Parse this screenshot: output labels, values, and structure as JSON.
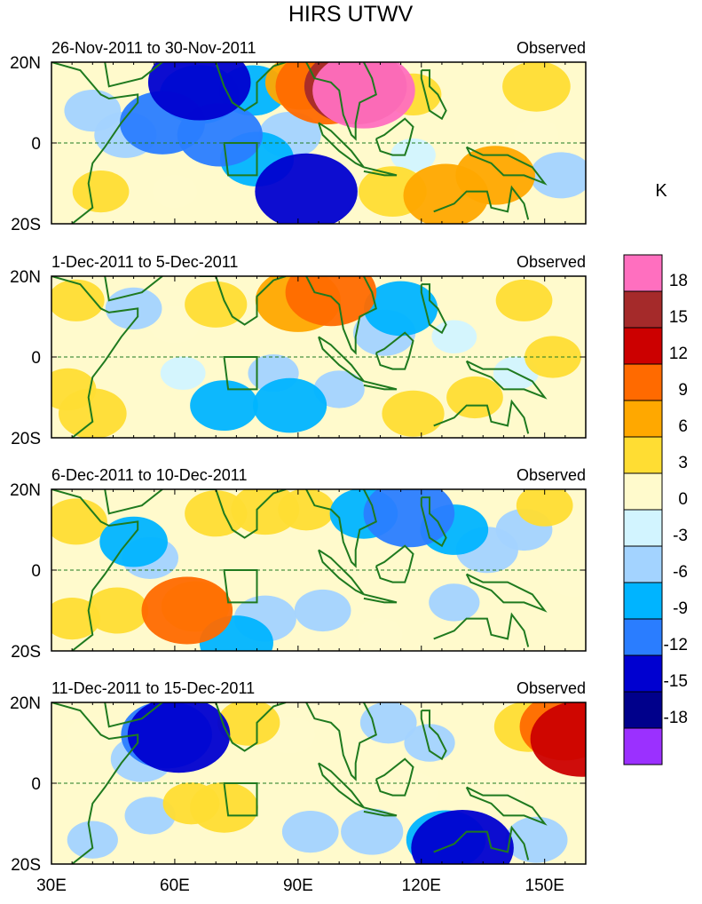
{
  "title": "HIRS UTWV",
  "colorbar": {
    "unit_label": "K",
    "levels": [
      18,
      15,
      12,
      9,
      6,
      3,
      0,
      -3,
      -6,
      -9,
      -12,
      -15,
      -18
    ],
    "colors": [
      "#ff6fbf",
      "#a52a2a",
      "#cc0000",
      "#ff6a00",
      "#ffa800",
      "#ffdd33",
      "#fffacc",
      "#d2f4ff",
      "#a3d3ff",
      "#00b4ff",
      "#2a7dff",
      "#0000d0",
      "#00008b",
      "#9b30ff"
    ]
  },
  "axes": {
    "x_ticks": [
      "30E",
      "60E",
      "90E",
      "120E",
      "150E"
    ],
    "x_values": [
      30,
      60,
      90,
      120,
      150
    ],
    "x_range": [
      30,
      160
    ],
    "y_range": [
      -20,
      20
    ],
    "y_ticks": [
      "20N",
      "0",
      "20S"
    ],
    "y_values": [
      20,
      0,
      -20
    ],
    "equator_line": "dashed"
  },
  "chart_data": [
    {
      "type": "heatmap",
      "title": "26-Nov-2011 to 30-Nov-2011",
      "label_right": "Observed",
      "blobs": [
        {
          "lon": 48,
          "lat": 2,
          "value": -5
        },
        {
          "lon": 57,
          "lat": 5,
          "value": -9
        },
        {
          "lon": 66,
          "lat": 12,
          "value": -8
        },
        {
          "lon": 66,
          "lat": 15,
          "value": -14
        },
        {
          "lon": 71,
          "lat": 2,
          "value": -9
        },
        {
          "lon": 80,
          "lat": -4,
          "value": -7
        },
        {
          "lon": 92,
          "lat": -12,
          "value": -12
        },
        {
          "lon": 79,
          "lat": 13,
          "value": -6
        },
        {
          "lon": 88,
          "lat": 2,
          "value": -5
        },
        {
          "lon": 40,
          "lat": 8,
          "value": -4
        },
        {
          "lon": 42,
          "lat": -12,
          "value": 4
        },
        {
          "lon": 97,
          "lat": 14,
          "value": 12
        },
        {
          "lon": 104,
          "lat": 14,
          "value": 16
        },
        {
          "lon": 106,
          "lat": 13,
          "value": 19
        },
        {
          "lon": 91,
          "lat": 15,
          "value": 7
        },
        {
          "lon": 118,
          "lat": 12,
          "value": 4
        },
        {
          "lon": 148,
          "lat": 14,
          "value": 6
        },
        {
          "lon": 126,
          "lat": -13,
          "value": 9
        },
        {
          "lon": 138,
          "lat": -8,
          "value": 8
        },
        {
          "lon": 113,
          "lat": -12,
          "value": 6
        },
        {
          "lon": 118,
          "lat": -3,
          "value": -2
        },
        {
          "lon": 154,
          "lat": -8,
          "value": -5
        },
        {
          "lon": 148,
          "lat": 2,
          "value": 2
        },
        {
          "lon": 60,
          "lat": -12,
          "value": 2
        }
      ]
    },
    {
      "type": "heatmap",
      "title": "1-Dec-2011 to 5-Dec-2011",
      "label_right": "Observed",
      "blobs": [
        {
          "lon": 36,
          "lat": 14,
          "value": 4
        },
        {
          "lon": 40,
          "lat": -14,
          "value": 6
        },
        {
          "lon": 34,
          "lat": -8,
          "value": 4
        },
        {
          "lon": 50,
          "lat": 12,
          "value": -4
        },
        {
          "lon": 60,
          "lat": 8,
          "value": 3
        },
        {
          "lon": 70,
          "lat": 13,
          "value": 5
        },
        {
          "lon": 90,
          "lat": 14,
          "value": 9
        },
        {
          "lon": 98,
          "lat": 16,
          "value": 10
        },
        {
          "lon": 115,
          "lat": 12,
          "value": -7
        },
        {
          "lon": 111,
          "lat": 6,
          "value": -5
        },
        {
          "lon": 72,
          "lat": -12,
          "value": -6
        },
        {
          "lon": 88,
          "lat": -12,
          "value": -7
        },
        {
          "lon": 84,
          "lat": -4,
          "value": -3
        },
        {
          "lon": 100,
          "lat": -8,
          "value": -3
        },
        {
          "lon": 118,
          "lat": -14,
          "value": 5
        },
        {
          "lon": 133,
          "lat": -10,
          "value": 4
        },
        {
          "lon": 145,
          "lat": 14,
          "value": 4
        },
        {
          "lon": 152,
          "lat": 0,
          "value": 4
        },
        {
          "lon": 62,
          "lat": -4,
          "value": -2
        },
        {
          "lon": 128,
          "lat": 5,
          "value": -2
        },
        {
          "lon": 143,
          "lat": -4,
          "value": -2
        }
      ]
    },
    {
      "type": "heatmap",
      "title": "6-Dec-2011 to 10-Dec-2011",
      "label_right": "Observed",
      "blobs": [
        {
          "lon": 36,
          "lat": 12,
          "value": 5
        },
        {
          "lon": 35,
          "lat": -12,
          "value": 4
        },
        {
          "lon": 50,
          "lat": 7,
          "value": -6
        },
        {
          "lon": 54,
          "lat": 3,
          "value": -4
        },
        {
          "lon": 70,
          "lat": 14,
          "value": 5
        },
        {
          "lon": 82,
          "lat": 15,
          "value": 6
        },
        {
          "lon": 92,
          "lat": 15,
          "value": 4
        },
        {
          "lon": 63,
          "lat": -10,
          "value": 10
        },
        {
          "lon": 65,
          "lat": -9,
          "value": 6
        },
        {
          "lon": 46,
          "lat": -10,
          "value": 5
        },
        {
          "lon": 117,
          "lat": 14,
          "value": -10
        },
        {
          "lon": 106,
          "lat": 14,
          "value": -6
        },
        {
          "lon": 128,
          "lat": 10,
          "value": -6
        },
        {
          "lon": 136,
          "lat": 5,
          "value": -5
        },
        {
          "lon": 145,
          "lat": 10,
          "value": -4
        },
        {
          "lon": 82,
          "lat": -12,
          "value": -5
        },
        {
          "lon": 75,
          "lat": -18,
          "value": -7
        },
        {
          "lon": 96,
          "lat": -10,
          "value": -4
        },
        {
          "lon": 128,
          "lat": -8,
          "value": -3
        },
        {
          "lon": 150,
          "lat": 16,
          "value": 4
        },
        {
          "lon": 157,
          "lat": -2,
          "value": 3
        },
        {
          "lon": 110,
          "lat": -16,
          "value": 2
        }
      ]
    },
    {
      "type": "heatmap",
      "title": "11-Dec-2011 to 15-Dec-2011",
      "label_right": "Observed",
      "blobs": [
        {
          "lon": 40,
          "lat": 12,
          "value": 3
        },
        {
          "lon": 58,
          "lat": 12,
          "value": -10
        },
        {
          "lon": 61,
          "lat": 12,
          "value": -13
        },
        {
          "lon": 52,
          "lat": 6,
          "value": -5
        },
        {
          "lon": 78,
          "lat": 15,
          "value": 5
        },
        {
          "lon": 88,
          "lat": 12,
          "value": 3
        },
        {
          "lon": 72,
          "lat": -6,
          "value": 6
        },
        {
          "lon": 64,
          "lat": -5,
          "value": 4
        },
        {
          "lon": 112,
          "lat": 15,
          "value": -4
        },
        {
          "lon": 122,
          "lat": 10,
          "value": -3
        },
        {
          "lon": 146,
          "lat": 14,
          "value": 6
        },
        {
          "lon": 155,
          "lat": 14,
          "value": 10
        },
        {
          "lon": 159,
          "lat": 11,
          "value": 13
        },
        {
          "lon": 130,
          "lat": -16,
          "value": -12
        },
        {
          "lon": 126,
          "lat": -14,
          "value": -8
        },
        {
          "lon": 108,
          "lat": -12,
          "value": -5
        },
        {
          "lon": 93,
          "lat": -12,
          "value": -4
        },
        {
          "lon": 148,
          "lat": -14,
          "value": -5
        },
        {
          "lon": 118,
          "lat": -2,
          "value": 3
        },
        {
          "lon": 54,
          "lat": -8,
          "value": -3
        },
        {
          "lon": 140,
          "lat": -3,
          "value": 2
        },
        {
          "lon": 40,
          "lat": -14,
          "value": -3
        }
      ]
    }
  ]
}
